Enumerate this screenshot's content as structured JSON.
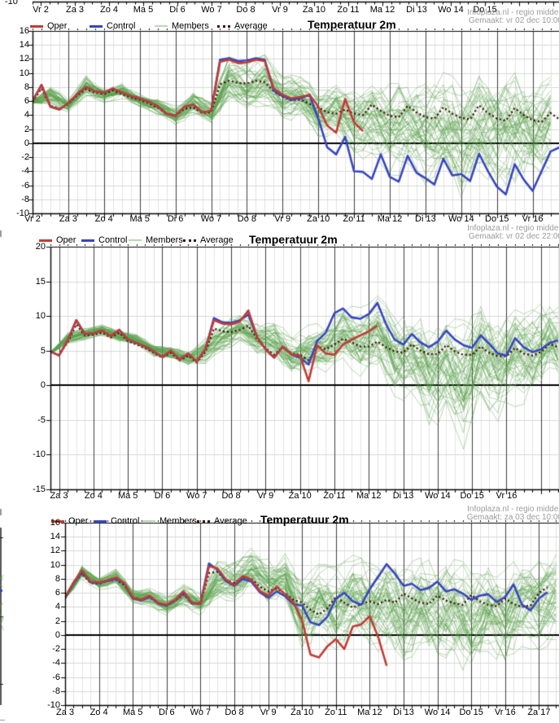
{
  "colors": {
    "oper": "#c23b34",
    "control": "#3846c0",
    "member": "#58a04a",
    "member_legend": "#b9d8b4",
    "average": "#3a1505",
    "grid_day": "#3c3c3c",
    "grid_minor": "#e2e2e2",
    "grid_h": "#d9d9d9",
    "zero_line": "#000000",
    "axis": "#000000",
    "header_text": "#9c9c9c",
    "label_text": "#000000"
  },
  "remnant_axis": {
    "y_label": "-10",
    "x_labels": [
      "Vr 2",
      "Za 3",
      "Zo 4",
      "Ma 5",
      "Di 6",
      "Wo 7",
      "Do 8",
      "Vr 9",
      "Za 10",
      "Zo 11",
      "Ma 12",
      "Di 13",
      "Wo 14",
      "Do 15"
    ]
  },
  "chart_data": [
    {
      "type": "line",
      "title": "Temperatuur 2m",
      "brand": "Infoplaza.nl - regio midden",
      "made": "Gemaakt: vr 02 dec 10:00",
      "legend": [
        "Oper",
        "Control",
        "Members",
        "Average"
      ],
      "y_axis": {
        "min": -10,
        "max": 16,
        "step": 2,
        "unit": "C"
      },
      "x_tick_labels": [
        "Vr 2",
        "Za 3",
        "Zo 4",
        "Ma 5",
        "Di 6",
        "Wo 7",
        "Do 8",
        "Vr 9",
        "Za 10",
        "Zo 11",
        "Ma 12",
        "Di 13",
        "Wo 14",
        "Do 15",
        "Vr 16"
      ],
      "time_step_days": 0.25,
      "series": [
        {
          "name": "Oper",
          "color_key": "oper",
          "style": "solid",
          "values": [
            6.0,
            8.3,
            5.2,
            4.8,
            5.7,
            7.0,
            8.0,
            7.4,
            7.2,
            7.8,
            7.2,
            6.7,
            6.4,
            5.9,
            5.3,
            4.2,
            3.9,
            5.2,
            5.5,
            4.4,
            4.6,
            11.6,
            11.9,
            11.4,
            11.5,
            11.9,
            11.7,
            7.8,
            6.9,
            6.4,
            6.6,
            6.9,
            5.2,
            2.5,
            1.5,
            6.3,
            3.0,
            1.7
          ]
        },
        {
          "name": "Control",
          "color_key": "control",
          "style": "solid",
          "values": [
            6.0,
            8.3,
            5.2,
            4.8,
            5.7,
            7.0,
            8.0,
            7.4,
            7.2,
            7.8,
            7.2,
            6.7,
            6.4,
            5.9,
            5.3,
            4.2,
            3.9,
            5.2,
            5.5,
            4.4,
            4.6,
            11.9,
            12.1,
            11.7,
            11.8,
            12.1,
            11.9,
            7.5,
            6.7,
            6.2,
            6.4,
            6.9,
            3.5,
            -0.6,
            -1.6,
            0.9,
            -4.0,
            -4.1,
            -5.1,
            -1.6,
            -4.8,
            -5.5,
            -1.8,
            -4.2,
            -5.0,
            -5.9,
            -2.2,
            -4.6,
            -4.4,
            -5.4,
            -1.5,
            -4.0,
            -6.2,
            -7.3,
            -3.0,
            -5.2,
            -6.8,
            -4.0,
            -1.2,
            -0.6
          ]
        },
        {
          "name": "Average",
          "color_key": "average",
          "style": "dotted",
          "values": [
            5.9,
            7.8,
            5.3,
            4.9,
            5.6,
            6.8,
            7.7,
            7.2,
            7.0,
            7.5,
            7.0,
            6.5,
            6.2,
            5.7,
            5.1,
            4.2,
            3.9,
            4.9,
            5.1,
            4.3,
            4.4,
            8.4,
            8.9,
            8.6,
            8.5,
            8.9,
            8.7,
            7.4,
            6.6,
            6.1,
            6.2,
            5.6,
            5.1,
            4.4,
            4.2,
            4.8,
            4.2,
            4.0,
            5.5,
            4.6,
            3.9,
            3.7,
            5.3,
            4.4,
            3.7,
            3.5,
            5.1,
            4.2,
            3.6,
            3.4,
            5.4,
            4.3,
            3.5,
            3.2,
            5.0,
            4.0,
            3.3,
            3.0,
            4.3,
            3.4
          ]
        }
      ],
      "members": {
        "name": "Members",
        "count": 50,
        "envelope_step_days": 0.5,
        "min": [
          5.2,
          4.5,
          4.6,
          6.2,
          6.0,
          6.0,
          5.2,
          3.6,
          2.6,
          3.2,
          2.8,
          4.5,
          4.8,
          4.2,
          3.6,
          2.6,
          1.2,
          0.0,
          -1.5,
          -3.5,
          -4.5,
          -5.5,
          -6.0,
          -7.0,
          -8.2,
          -6.5,
          -6.0,
          -7.5,
          -6.2,
          -5.8
        ],
        "max": [
          7.0,
          8.6,
          6.8,
          9.6,
          8.4,
          8.6,
          7.4,
          6.4,
          5.6,
          7.2,
          6.4,
          12.1,
          12.2,
          12.4,
          10.5,
          9.2,
          8.6,
          9.0,
          9.4,
          9.0,
          9.8,
          9.6,
          10.0,
          10.2,
          10.4,
          10.8,
          11.0,
          11.2,
          10.6,
          10.4
        ]
      }
    },
    {
      "type": "line",
      "title": "Temperatuur 2m",
      "brand": "Infoplaza.nl - regio midden",
      "made": "Gemaakt: vr 02 dec 22:00",
      "legend": [
        "Oper",
        "Control",
        "Members",
        "Average"
      ],
      "y_axis": {
        "min": -15,
        "max": 20,
        "step": 5,
        "unit": "C"
      },
      "x_tick_labels": [
        "Za 3",
        "Zo 4",
        "Ma 5",
        "Di 6",
        "Wo 7",
        "Do 8",
        "Vr 9",
        "Za 10",
        "Zo 11",
        "Ma 12",
        "Di 13",
        "Wo 14",
        "Do 15",
        "Vr 16"
      ],
      "time_step_days": 0.25,
      "series": [
        {
          "name": "Oper",
          "color_key": "oper",
          "style": "solid",
          "values": [
            4.9,
            4.3,
            6.5,
            9.4,
            7.4,
            7.5,
            7.9,
            7.1,
            8.0,
            6.6,
            6.1,
            5.6,
            4.9,
            4.1,
            5.0,
            3.7,
            4.6,
            3.4,
            5.2,
            9.4,
            8.9,
            8.8,
            9.2,
            10.8,
            7.0,
            5.2,
            4.0,
            5.6,
            4.5,
            4.3,
            0.6,
            5.8,
            4.6,
            4.4,
            5.9,
            6.6,
            7.2,
            7.8,
            8.6
          ]
        },
        {
          "name": "Control",
          "color_key": "control",
          "style": "solid",
          "values": [
            4.9,
            4.3,
            6.5,
            9.4,
            7.4,
            7.5,
            7.9,
            7.1,
            8.0,
            6.6,
            6.1,
            5.6,
            4.9,
            4.1,
            5.0,
            3.7,
            4.6,
            3.4,
            5.2,
            9.7,
            9.1,
            9.0,
            9.4,
            10.2,
            7.0,
            5.2,
            4.0,
            5.6,
            4.5,
            4.0,
            3.0,
            6.4,
            7.6,
            10.4,
            11.1,
            9.8,
            9.6,
            10.3,
            11.9,
            8.8,
            6.6,
            5.9,
            7.4,
            6.2,
            5.5,
            6.3,
            7.9,
            6.6,
            5.8,
            5.4,
            7.2,
            6.0,
            4.6,
            4.3,
            6.8,
            5.5,
            4.8,
            5.2,
            6.1,
            6.5
          ]
        },
        {
          "name": "Average",
          "color_key": "average",
          "style": "dotted",
          "values": [
            4.8,
            4.4,
            6.2,
            8.8,
            7.2,
            7.3,
            7.6,
            6.9,
            7.6,
            6.4,
            5.9,
            5.4,
            4.7,
            4.0,
            4.7,
            3.6,
            4.3,
            3.3,
            4.8,
            8.2,
            7.8,
            7.7,
            8.0,
            8.6,
            6.7,
            5.3,
            4.4,
            5.5,
            4.6,
            4.4,
            3.6,
            5.6,
            5.2,
            5.9,
            6.7,
            6.2,
            5.6,
            5.6,
            6.3,
            5.5,
            4.9,
            4.7,
            5.9,
            5.0,
            4.5,
            4.5,
            5.8,
            4.9,
            4.4,
            4.4,
            5.6,
            4.7,
            4.2,
            4.2,
            5.4,
            4.6,
            4.3,
            4.8,
            6.0,
            5.5
          ]
        }
      ],
      "members": {
        "name": "Members",
        "count": 50,
        "envelope_step_days": 0.5,
        "min": [
          4.2,
          5.4,
          6.6,
          6.8,
          6.3,
          5.6,
          4.3,
          3.4,
          2.9,
          2.3,
          5.0,
          5.5,
          4.5,
          3.0,
          1.8,
          1.0,
          2.0,
          2.2,
          1.5,
          0.5,
          -2.0,
          -4.5,
          -6.5,
          -7.5,
          -9.0,
          -5.5,
          -5.0,
          -4.0,
          -2.5,
          -1.5
        ],
        "max": [
          5.4,
          7.6,
          8.6,
          8.8,
          8.3,
          7.2,
          6.2,
          5.6,
          5.3,
          6.6,
          9.8,
          10.2,
          10.0,
          9.0,
          8.0,
          8.5,
          10.0,
          12.0,
          12.2,
          13.0,
          11.5,
          11.0,
          10.5,
          11.0,
          10.5,
          12.0,
          11.0,
          11.0,
          12.0,
          12.5
        ]
      }
    },
    {
      "type": "line",
      "title": "Temperatuur 2m",
      "brand": "Infoplaza.nl - regio midden",
      "made": "Gemaakt: za 03 dec 10:00",
      "legend": [
        "Oper",
        "Control",
        "Members",
        "Average"
      ],
      "y_axis": {
        "min": -10,
        "max": 16,
        "step": 2,
        "unit": "C"
      },
      "x_tick_labels": [
        "Za 3",
        "Zo 4",
        "Ma 5",
        "Di 6",
        "Wo 7",
        "Do 8",
        "Vr 9",
        "Za 10",
        "Zo 11",
        "Ma 12",
        "Di 13",
        "Wo 14",
        "Do 15",
        "Vr 16",
        "Za 17"
      ],
      "time_step_days": 0.25,
      "series": [
        {
          "name": "Oper",
          "color_key": "oper",
          "style": "solid",
          "values": [
            5.4,
            7.5,
            9.2,
            7.6,
            7.5,
            7.8,
            8.2,
            7.4,
            5.3,
            5.0,
            5.6,
            4.6,
            4.3,
            5.0,
            6.2,
            4.6,
            4.4,
            9.8,
            9.5,
            7.9,
            7.1,
            8.4,
            7.9,
            6.3,
            5.6,
            6.9,
            5.8,
            4.6,
            2.1,
            -2.8,
            -3.2,
            -1.6,
            -0.6,
            -2.0,
            1.2,
            1.5,
            2.7,
            -0.3,
            -4.4
          ]
        },
        {
          "name": "Control",
          "color_key": "control",
          "style": "solid",
          "values": [
            5.3,
            7.4,
            9.0,
            7.5,
            7.4,
            7.7,
            8.0,
            7.3,
            5.2,
            4.9,
            5.4,
            4.5,
            4.2,
            4.9,
            6.0,
            4.5,
            4.5,
            10.2,
            9.3,
            7.7,
            7.0,
            8.0,
            7.6,
            6.1,
            5.3,
            6.2,
            5.5,
            4.4,
            4.2,
            1.8,
            1.4,
            2.6,
            5.2,
            6.0,
            4.8,
            4.3,
            6.5,
            8.3,
            10.1,
            8.7,
            7.0,
            7.3,
            6.4,
            6.7,
            7.6,
            6.2,
            6.5,
            5.9,
            5.0,
            5.6,
            5.8,
            4.7,
            5.4,
            7.2,
            4.3,
            3.5,
            5.2,
            6.1
          ]
        },
        {
          "name": "Average",
          "color_key": "average",
          "style": "dotted",
          "values": [
            5.2,
            7.4,
            8.8,
            7.4,
            7.3,
            7.7,
            7.9,
            7.1,
            5.4,
            5.0,
            5.4,
            4.5,
            4.2,
            4.9,
            5.8,
            4.5,
            4.5,
            8.8,
            9.0,
            7.8,
            7.4,
            8.2,
            8.0,
            6.9,
            6.2,
            6.6,
            5.9,
            5.0,
            4.6,
            3.6,
            2.9,
            3.8,
            5.4,
            4.6,
            3.9,
            4.4,
            4.8,
            4.4,
            5.0,
            4.6,
            5.9,
            5.2,
            4.6,
            4.4,
            5.6,
            4.9,
            4.5,
            4.3,
            5.7,
            4.8,
            4.3,
            4.1,
            5.2,
            4.4,
            4.0,
            4.2,
            6.0,
            6.8
          ]
        }
      ],
      "members": {
        "name": "Members",
        "count": 50,
        "envelope_step_days": 0.5,
        "min": [
          4.6,
          7.2,
          6.4,
          6.6,
          4.6,
          3.6,
          3.0,
          3.4,
          3.0,
          3.6,
          5.0,
          6.0,
          4.8,
          3.8,
          -2.5,
          -1.5,
          -2.0,
          -1.0,
          -2.5,
          -3.5,
          -5.9,
          -3.5,
          -4.5,
          -5.0,
          -6.4,
          -4.0,
          -4.5,
          -3.0,
          -2.0
        ],
        "max": [
          6.4,
          10.0,
          8.6,
          9.2,
          6.8,
          6.6,
          5.8,
          7.0,
          6.2,
          10.4,
          11.6,
          12.2,
          12.0,
          11.4,
          10.0,
          10.2,
          10.8,
          11.2,
          11.6,
          12.0,
          11.2,
          11.0,
          11.4,
          11.0,
          11.0,
          11.2,
          11.0,
          11.4,
          12.0
        ]
      }
    }
  ]
}
